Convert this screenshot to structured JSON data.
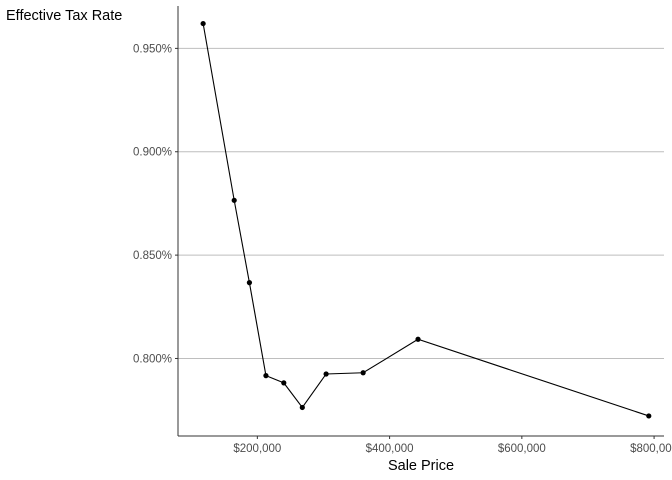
{
  "chart_data": {
    "type": "line",
    "title": "",
    "xlabel": "Sale Price",
    "ylabel": "Effective Tax Rate",
    "x": [
      118000,
      165000,
      188000,
      213000,
      240000,
      268000,
      304000,
      360000,
      443000,
      792000
    ],
    "series": [
      {
        "values": [
          0.962,
          0.8765,
          0.8367,
          0.7917,
          0.7882,
          0.7763,
          0.7925,
          0.7931,
          0.8093,
          0.7722
        ]
      }
    ],
    "xlim": [
      80000,
      815000
    ],
    "ylim": [
      0.7625,
      0.9705
    ],
    "x_ticks": [
      200000,
      400000,
      600000,
      800000
    ],
    "x_tick_labels": [
      "$200,000",
      "$400,000",
      "$600,000",
      "$800,000"
    ],
    "y_ticks": [
      0.8,
      0.85,
      0.9,
      0.95
    ],
    "y_tick_labels": [
      "0.800%",
      "0.850%",
      "0.900%",
      "0.950%"
    ],
    "grid": "horizontal major gridlines",
    "legend": "none",
    "colors": {
      "line": "#000000",
      "point": "#000000",
      "grid": "#bebebe",
      "axis": "#333333",
      "tick_text": "#4d4d4d"
    }
  }
}
